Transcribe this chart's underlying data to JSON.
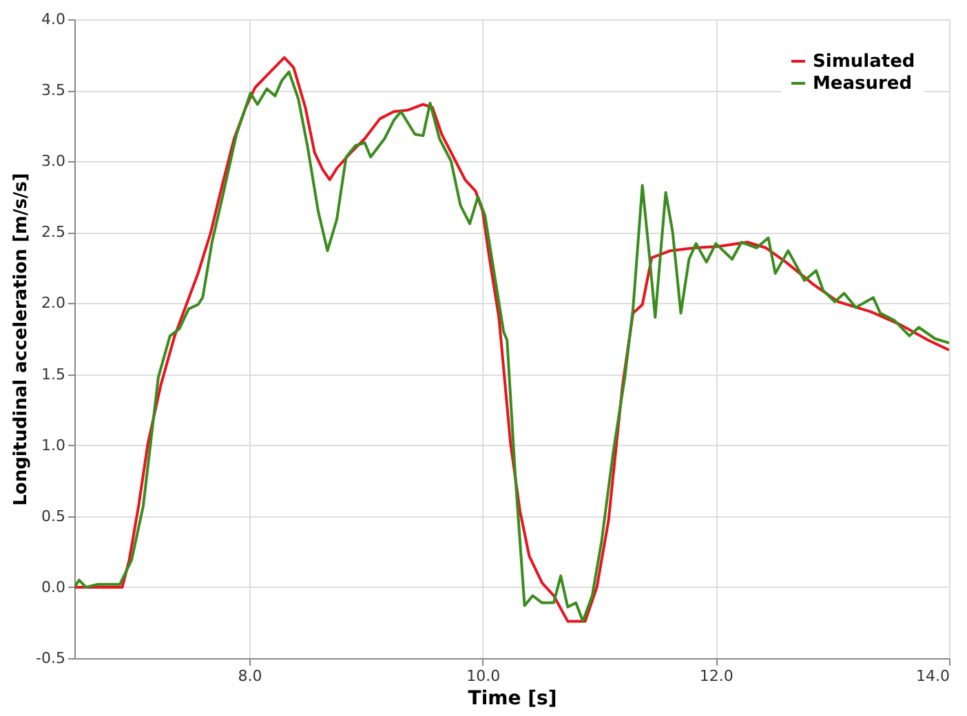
{
  "chart_data": {
    "type": "line",
    "xlabel": "Time [s]",
    "ylabel": "Longitudinal acceleration [m/s/s]",
    "xlim": [
      6.5,
      14.0
    ],
    "ylim": [
      -0.5,
      4.0
    ],
    "xticks": [
      {
        "value": 8,
        "label": "8.0"
      },
      {
        "value": 10,
        "label": "10.0"
      },
      {
        "value": 12,
        "label": "12.0"
      },
      {
        "value": 14,
        "label": "14.0"
      }
    ],
    "yticks": [
      {
        "value": -0.5,
        "label": "-0.5"
      },
      {
        "value": 0,
        "label": "0.0"
      },
      {
        "value": 0.5,
        "label": "0.5"
      },
      {
        "value": 1,
        "label": "1.0"
      },
      {
        "value": 1.5,
        "label": "1.5"
      },
      {
        "value": 2,
        "label": "2.0"
      },
      {
        "value": 2.5,
        "label": "2.5"
      },
      {
        "value": 3,
        "label": "3.0"
      },
      {
        "value": 3.5,
        "label": "3.5"
      },
      {
        "value": 4,
        "label": "4.0"
      }
    ],
    "grid": true,
    "legend": "top right",
    "series": [
      {
        "name": "Simulated",
        "color": "#e8141e",
        "x": [
          6.5,
          6.91,
          6.97,
          7.05,
          7.13,
          7.24,
          7.36,
          7.46,
          7.56,
          7.67,
          7.77,
          7.87,
          7.97,
          8.05,
          8.18,
          8.3,
          8.38,
          8.48,
          8.56,
          8.63,
          8.69,
          8.75,
          8.87,
          8.99,
          9.12,
          9.24,
          9.36,
          9.49,
          9.57,
          9.65,
          9.75,
          9.85,
          9.94,
          10.0,
          10.06,
          10.14,
          10.24,
          10.32,
          10.4,
          10.51,
          10.61,
          10.73,
          10.88,
          10.98,
          11.08,
          11.2,
          11.29,
          11.37,
          11.45,
          11.61,
          11.82,
          12.02,
          12.27,
          12.43,
          12.6,
          12.84,
          13.05,
          13.33,
          13.58,
          13.82,
          14.0
        ],
        "values": [
          0,
          0,
          0.19,
          0.57,
          1.01,
          1.42,
          1.77,
          1.99,
          2.21,
          2.5,
          2.84,
          3.16,
          3.38,
          3.52,
          3.63,
          3.73,
          3.66,
          3.38,
          3.06,
          2.94,
          2.87,
          2.95,
          3.06,
          3.16,
          3.3,
          3.35,
          3.36,
          3.4,
          3.38,
          3.19,
          3.03,
          2.87,
          2.79,
          2.65,
          2.31,
          1.9,
          1.01,
          0.54,
          0.22,
          0.03,
          -0.06,
          -0.24,
          -0.24,
          0,
          0.47,
          1.42,
          1.93,
          1.99,
          2.32,
          2.37,
          2.39,
          2.4,
          2.43,
          2.39,
          2.29,
          2.13,
          2.01,
          1.94,
          1.85,
          1.74,
          1.67
        ]
      },
      {
        "name": "Measured",
        "color": "#3a8c1e",
        "x": [
          6.5,
          6.54,
          6.6,
          6.7,
          6.89,
          6.99,
          7.09,
          7.22,
          7.32,
          7.4,
          7.48,
          7.56,
          7.6,
          7.68,
          7.77,
          7.89,
          8.01,
          8.07,
          8.15,
          8.22,
          8.28,
          8.34,
          8.42,
          8.5,
          8.59,
          8.67,
          8.75,
          8.83,
          8.91,
          8.99,
          9.04,
          9.16,
          9.24,
          9.3,
          9.42,
          9.49,
          9.55,
          9.63,
          9.73,
          9.81,
          9.89,
          9.96,
          10.02,
          10.1,
          10.18,
          10.21,
          10.28,
          10.36,
          10.43,
          10.51,
          10.61,
          10.67,
          10.73,
          10.8,
          10.86,
          10.94,
          11.02,
          11.12,
          11.22,
          11.29,
          11.37,
          11.43,
          11.48,
          11.57,
          11.63,
          11.7,
          11.77,
          11.83,
          11.92,
          12.0,
          12.14,
          12.22,
          12.35,
          12.45,
          12.51,
          12.62,
          12.76,
          12.86,
          12.92,
          13.02,
          13.1,
          13.2,
          13.35,
          13.41,
          13.53,
          13.66,
          13.74,
          13.88,
          14.0
        ],
        "values": [
          0,
          0.05,
          0,
          0.02,
          0.02,
          0.19,
          0.57,
          1.48,
          1.77,
          1.82,
          1.96,
          1.99,
          2.04,
          2.43,
          2.75,
          3.19,
          3.48,
          3.4,
          3.51,
          3.46,
          3.57,
          3.63,
          3.44,
          3.1,
          2.65,
          2.37,
          2.59,
          3.03,
          3.11,
          3.13,
          3.03,
          3.16,
          3.29,
          3.35,
          3.19,
          3.18,
          3.41,
          3.16,
          3.0,
          2.69,
          2.56,
          2.75,
          2.62,
          2.21,
          1.8,
          1.74,
          0.79,
          -0.13,
          -0.06,
          -0.11,
          -0.11,
          0.08,
          -0.14,
          -0.11,
          -0.24,
          -0.06,
          0.32,
          0.95,
          1.48,
          1.96,
          2.83,
          2.34,
          1.9,
          2.78,
          2.5,
          1.93,
          2.31,
          2.42,
          2.29,
          2.42,
          2.31,
          2.43,
          2.39,
          2.46,
          2.21,
          2.37,
          2.16,
          2.23,
          2.09,
          2.01,
          2.07,
          1.97,
          2.04,
          1.93,
          1.88,
          1.77,
          1.83,
          1.75,
          1.72
        ]
      }
    ]
  }
}
